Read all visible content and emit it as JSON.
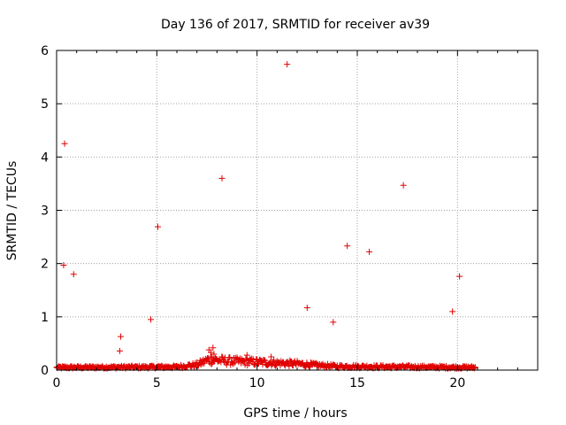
{
  "chart_data": {
    "type": "scatter",
    "title": "Day 136 of 2017, SRMTID for receiver av39",
    "xlabel": "GPS time / hours",
    "ylabel": "SRMTID / TECUs",
    "xlim": [
      0,
      24
    ],
    "ylim": [
      0,
      6
    ],
    "xticks": [
      0,
      5,
      10,
      15,
      20
    ],
    "yticks": [
      0,
      1,
      2,
      3,
      4,
      5,
      6
    ],
    "xtick_labels": [
      "0",
      "5",
      "10",
      "15",
      "20"
    ],
    "ytick_labels": [
      "0",
      "1",
      "2",
      "3",
      "4",
      "5",
      "6"
    ],
    "grid": true,
    "marker": "+",
    "color": "#e00000",
    "series": [
      {
        "name": "SRMTID",
        "outliers": [
          {
            "x": 0.4,
            "y": 4.25
          },
          {
            "x": 0.35,
            "y": 1.97
          },
          {
            "x": 0.85,
            "y": 1.8
          },
          {
            "x": 3.2,
            "y": 0.63
          },
          {
            "x": 3.15,
            "y": 0.36
          },
          {
            "x": 4.7,
            "y": 0.95
          },
          {
            "x": 5.05,
            "y": 2.69
          },
          {
            "x": 8.25,
            "y": 3.6
          },
          {
            "x": 11.5,
            "y": 5.74
          },
          {
            "x": 12.5,
            "y": 1.17
          },
          {
            "x": 13.8,
            "y": 0.9
          },
          {
            "x": 14.5,
            "y": 2.33
          },
          {
            "x": 15.6,
            "y": 2.22
          },
          {
            "x": 17.3,
            "y": 3.47
          },
          {
            "x": 19.75,
            "y": 1.1
          },
          {
            "x": 20.1,
            "y": 1.76
          },
          {
            "x": 7.6,
            "y": 0.38
          },
          {
            "x": 7.7,
            "y": 0.33
          },
          {
            "x": 7.8,
            "y": 0.42
          },
          {
            "x": 7.85,
            "y": 0.3
          },
          {
            "x": 7.75,
            "y": 0.25
          },
          {
            "x": 9.5,
            "y": 0.28
          },
          {
            "x": 10.7,
            "y": 0.25
          }
        ],
        "baseline": {
          "x_range": [
            0,
            20.9
          ],
          "step": 0.04,
          "profile": [
            {
              "x": 0,
              "y": 0.05
            },
            {
              "x": 6.0,
              "y": 0.06
            },
            {
              "x": 7.0,
              "y": 0.1
            },
            {
              "x": 7.6,
              "y": 0.2
            },
            {
              "x": 8.5,
              "y": 0.17
            },
            {
              "x": 10.0,
              "y": 0.15
            },
            {
              "x": 12.0,
              "y": 0.12
            },
            {
              "x": 13.0,
              "y": 0.09
            },
            {
              "x": 14.0,
              "y": 0.07
            },
            {
              "x": 20.9,
              "y": 0.05
            }
          ]
        }
      }
    ]
  }
}
